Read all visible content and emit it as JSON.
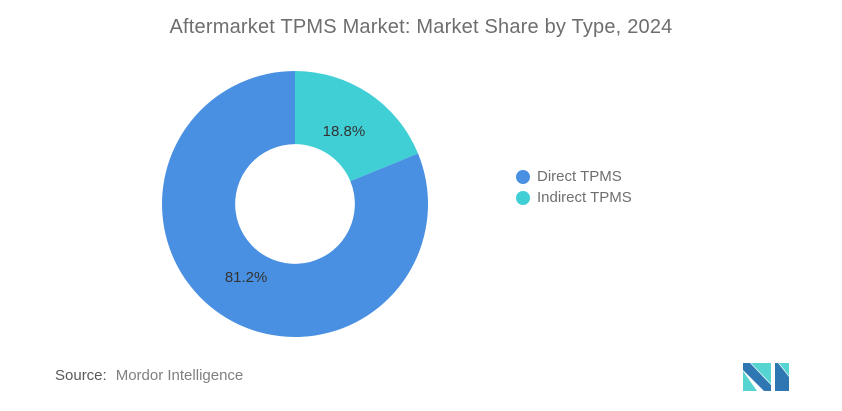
{
  "title": "Aftermarket TPMS Market: Market Share by Type, 2024",
  "chart_data": {
    "type": "pie",
    "subtype": "donut",
    "title": "Aftermarket TPMS Market: Market Share by Type, 2024",
    "categories": [
      "Direct TPMS",
      "Indirect TPMS"
    ],
    "values": [
      81.2,
      18.8
    ],
    "unit": "%",
    "start_angle_deg": 0,
    "direction": "clockwise",
    "inner_radius_ratio": 0.45,
    "legend_position": "right",
    "label_color": "#333333",
    "slices": [
      {
        "name": "Indirect TPMS",
        "value": 18.8,
        "label": "18.8%",
        "color": "#41CFD6"
      },
      {
        "name": "Direct TPMS",
        "value": 81.2,
        "label": "81.2%",
        "color": "#4A90E2"
      }
    ]
  },
  "legend": {
    "items": [
      {
        "label": "Direct TPMS",
        "color": "#4A90E2"
      },
      {
        "label": "Indirect TPMS",
        "color": "#41CFD6"
      }
    ]
  },
  "source": {
    "label": "Source:",
    "value": "Mordor Intelligence"
  },
  "logo": {
    "alt": "mordor-intelligence-logo",
    "blue": "#2E77B2",
    "teal": "#56D4D1"
  }
}
